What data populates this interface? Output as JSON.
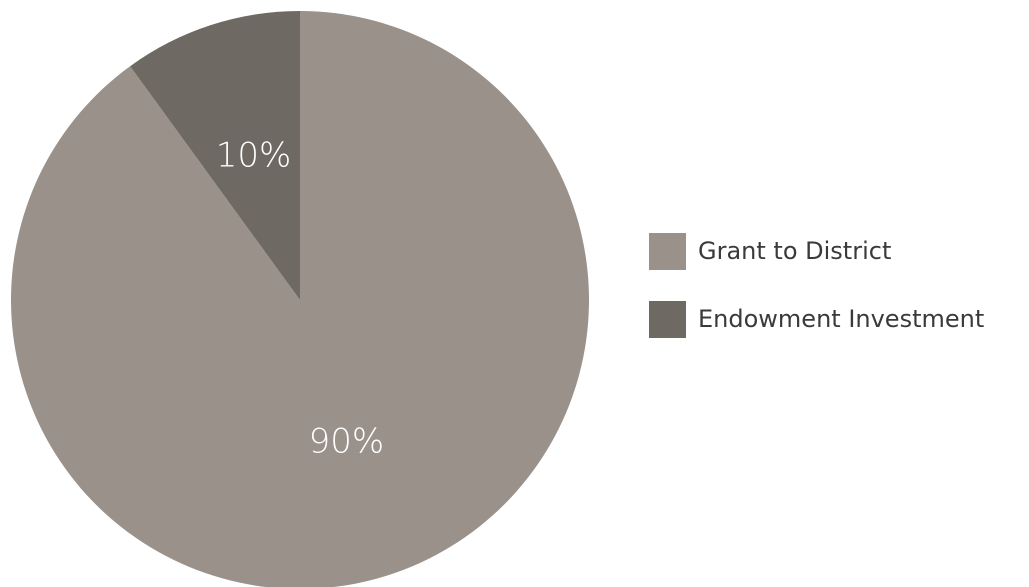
{
  "chart_data": {
    "type": "pie",
    "title": "",
    "categories": [
      "Grant to District",
      "Endowment Investment"
    ],
    "values": [
      90,
      10
    ],
    "labels": [
      "90%",
      "10%"
    ],
    "colors": [
      "#9a918b",
      "#6e6962"
    ],
    "start": "top",
    "direction": "clockwise",
    "legend_position": "right"
  },
  "legend": {
    "items": [
      {
        "label": "Grant to District",
        "color": "#9a918b"
      },
      {
        "label": "Endowment Investment",
        "color": "#6e6962"
      }
    ]
  }
}
